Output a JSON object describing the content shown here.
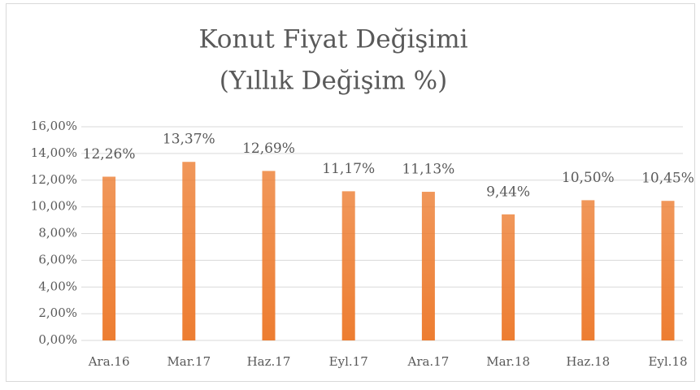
{
  "chart_data": {
    "type": "bar",
    "title": [
      "Konut Fiyat Değişimi",
      "(Yıllık Değişim %)"
    ],
    "categories": [
      "Ara.16",
      "Mar.17",
      "Haz.17",
      "Eyl.17",
      "Ara.17",
      "Mar.18",
      "Haz.18",
      "Eyl.18"
    ],
    "values": [
      12.26,
      13.37,
      12.69,
      11.17,
      11.13,
      9.44,
      10.5,
      10.45
    ],
    "value_labels": [
      "12,26%",
      "13,37%",
      "12,69%",
      "11,17%",
      "11,13%",
      "9,44%",
      "10,50%",
      "10,45%"
    ],
    "color": "#ed7d31",
    "ylim": [
      0,
      16
    ],
    "yticks": [
      {
        "value": 0,
        "label": "0,00%"
      },
      {
        "value": 2,
        "label": "2,00%"
      },
      {
        "value": 4,
        "label": "4,00%"
      },
      {
        "value": 6,
        "label": "6,00%"
      },
      {
        "value": 8,
        "label": "8,00%"
      },
      {
        "value": 10,
        "label": "10,00%"
      },
      {
        "value": 12,
        "label": "12,00%"
      },
      {
        "value": 14,
        "label": "14,00%"
      },
      {
        "value": 16,
        "label": "16,00%"
      }
    ],
    "grid": true
  }
}
